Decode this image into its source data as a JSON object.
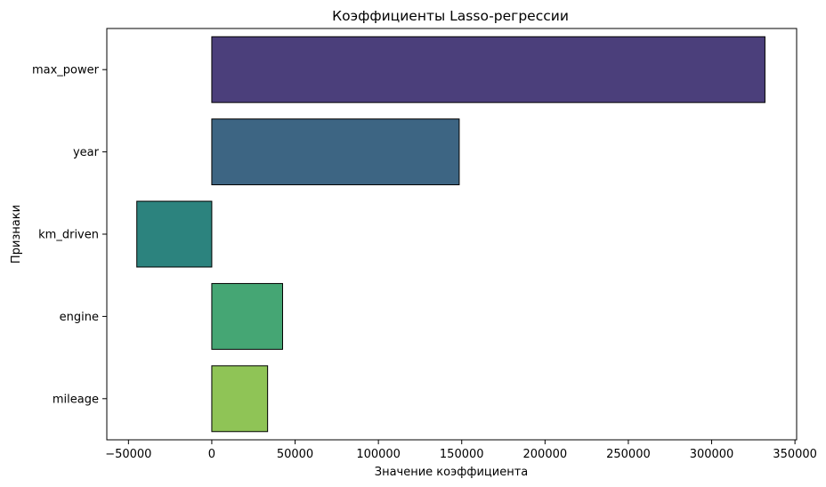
{
  "chart_data": {
    "type": "bar",
    "orientation": "horizontal",
    "title": "Коэффициенты Lasso-регрессии",
    "xlabel": "Значение коэффициента",
    "ylabel": "Признаки",
    "categories": [
      "max_power",
      "year",
      "km_driven",
      "engine",
      "mileage"
    ],
    "values": [
      332000,
      148500,
      -45000,
      42500,
      33500
    ],
    "colors": [
      "#4b3f7b",
      "#3d6583",
      "#2c837e",
      "#45a674",
      "#8fc456"
    ],
    "xlim": [
      -63000,
      351000
    ],
    "xticks": [
      -50000,
      0,
      50000,
      100000,
      150000,
      200000,
      250000,
      300000,
      350000
    ],
    "xtick_labels": [
      "−50000",
      "0",
      "50000",
      "100000",
      "150000",
      "200000",
      "250000",
      "300000",
      "350000"
    ],
    "grid": false,
    "legend": "none"
  }
}
